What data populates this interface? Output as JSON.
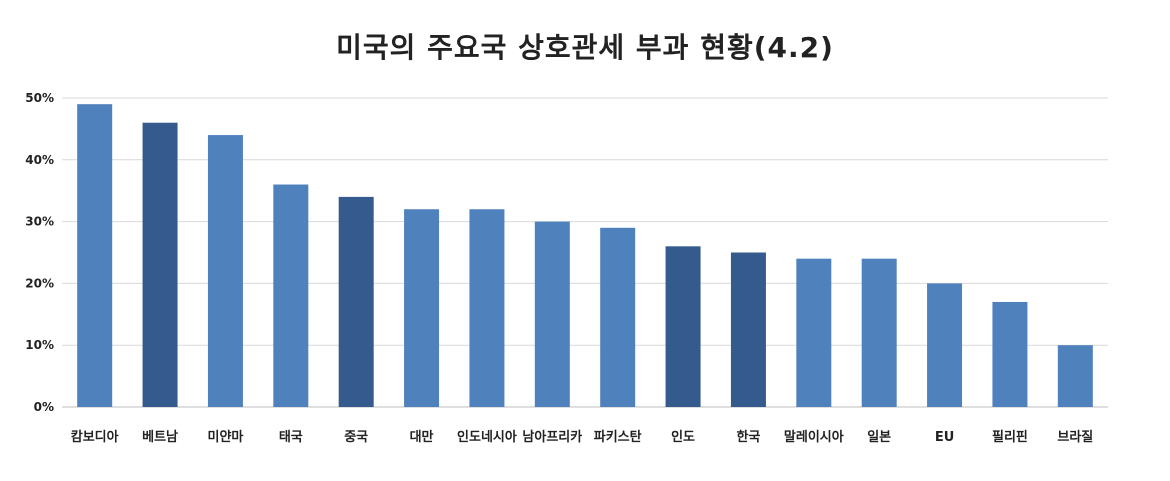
{
  "chart_data": {
    "type": "bar",
    "title": "미국의 주요국 상호관세 부과 현황(4.2)",
    "xlabel": "",
    "ylabel": "",
    "ylim": [
      0,
      50
    ],
    "yticks": [
      "0%",
      "10%",
      "20%",
      "30%",
      "40%",
      "50%"
    ],
    "grid": true,
    "legend": "none",
    "categories": [
      "캄보디아",
      "베트남",
      "미얀마",
      "태국",
      "중국",
      "대만",
      "인도네시아",
      "남아프리카",
      "파키스탄",
      "인도",
      "한국",
      "말레이시아",
      "일본",
      "EU",
      "필리핀",
      "브라질"
    ],
    "values": [
      49,
      46,
      44,
      36,
      34,
      32,
      32,
      30,
      29,
      26,
      25,
      24,
      24,
      20,
      17,
      10
    ],
    "highlighted": [
      "베트남",
      "중국",
      "인도",
      "한국"
    ],
    "colors": {
      "bar": "#4f81bd",
      "highlight": "#345a8e",
      "grid": "#d9d9d9",
      "axis": "#bfbfbf"
    }
  }
}
